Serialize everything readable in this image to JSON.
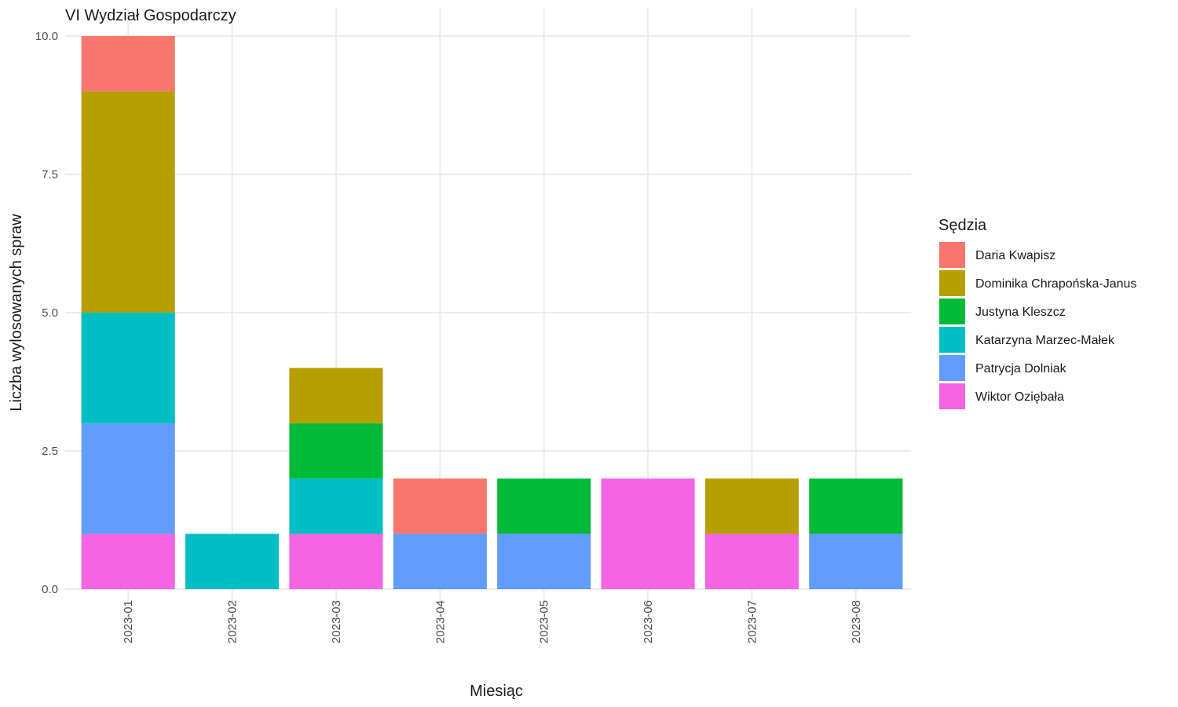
{
  "chart_data": {
    "type": "bar",
    "stacked": true,
    "title": "VI Wydział Gospodarczy",
    "xlabel": "Miesiąc",
    "ylabel": "Liczba wylosowanych spraw",
    "ylim": [
      0,
      10
    ],
    "yticks": [
      "0.0",
      "2.5",
      "5.0",
      "7.5",
      "10.0"
    ],
    "ytick_values": [
      0,
      2.5,
      5,
      7.5,
      10
    ],
    "grid": true,
    "legend": {
      "title": "Sędzia",
      "placement": "right"
    },
    "categories": [
      "2023-01",
      "2023-02",
      "2023-03",
      "2023-04",
      "2023-05",
      "2023-06",
      "2023-07",
      "2023-08"
    ],
    "series": [
      {
        "name": "Daria Kwapisz",
        "color": "#F8766D",
        "values": [
          1,
          0,
          0,
          1,
          0,
          0,
          0,
          0
        ]
      },
      {
        "name": "Dominika Chrapońska-Janus",
        "color": "#B79F00",
        "values": [
          4,
          0,
          1,
          0,
          0,
          0,
          1,
          0
        ]
      },
      {
        "name": "Justyna Kleszcz",
        "color": "#00BA38",
        "values": [
          0,
          0,
          1,
          0,
          1,
          0,
          0,
          1
        ]
      },
      {
        "name": "Katarzyna Marzec-Małek",
        "color": "#00BFC4",
        "values": [
          2,
          1,
          1,
          0,
          0,
          0,
          0,
          0
        ]
      },
      {
        "name": "Patrycja Dolniak",
        "color": "#619CFF",
        "values": [
          2,
          0,
          0,
          1,
          1,
          0,
          0,
          1
        ]
      },
      {
        "name": "Wiktor Oziębała",
        "color": "#F564E3",
        "values": [
          1,
          0,
          1,
          0,
          0,
          2,
          1,
          0
        ]
      }
    ]
  }
}
